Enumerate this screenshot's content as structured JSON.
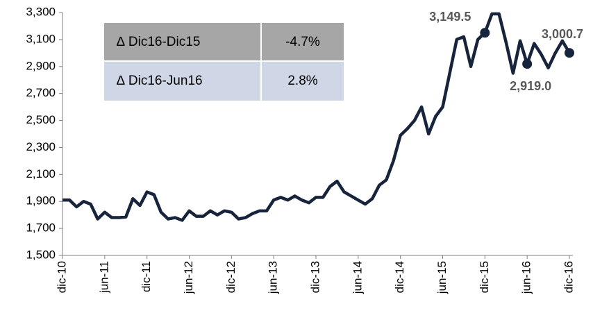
{
  "chart_data": {
    "type": "line",
    "categories": [
      "dic-10",
      null,
      null,
      null,
      null,
      null,
      "jun-11",
      null,
      null,
      null,
      null,
      null,
      "dic-11",
      null,
      null,
      null,
      null,
      null,
      "jun-12",
      null,
      null,
      null,
      null,
      null,
      "dic-12",
      null,
      null,
      null,
      null,
      null,
      "jun-13",
      null,
      null,
      null,
      null,
      null,
      "dic-13",
      null,
      null,
      null,
      null,
      null,
      "jun-14",
      null,
      null,
      null,
      null,
      null,
      "dic-14",
      null,
      null,
      null,
      null,
      null,
      "jun-15",
      null,
      null,
      null,
      null,
      null,
      "dic-15",
      null,
      null,
      null,
      null,
      null,
      "jun-16",
      null,
      null,
      null,
      null,
      null,
      "dic-16"
    ],
    "values": [
      1910,
      1910,
      1860,
      1900,
      1880,
      1770,
      1820,
      1780,
      1780,
      1785,
      1920,
      1870,
      1970,
      1950,
      1820,
      1770,
      1780,
      1760,
      1830,
      1790,
      1790,
      1830,
      1800,
      1830,
      1820,
      1770,
      1780,
      1810,
      1830,
      1830,
      1910,
      1930,
      1910,
      1940,
      1910,
      1890,
      1930,
      1930,
      2010,
      2050,
      1970,
      1940,
      1910,
      1880,
      1920,
      2020,
      2060,
      2200,
      2390,
      2440,
      2500,
      2600,
      2400,
      2530,
      2600,
      2850,
      3100,
      3120,
      2900,
      3100,
      3149.5,
      3290,
      3290,
      3080,
      2850,
      3090,
      2919.0,
      3070,
      2990,
      2890,
      3000,
      3090,
      3000.7
    ],
    "value_labels": [
      null,
      null,
      null,
      null,
      null,
      null,
      null,
      null,
      null,
      null,
      null,
      null,
      null,
      null,
      null,
      null,
      null,
      null,
      null,
      null,
      null,
      null,
      null,
      null,
      null,
      null,
      null,
      null,
      null,
      null,
      null,
      null,
      null,
      null,
      null,
      null,
      null,
      null,
      null,
      null,
      null,
      null,
      null,
      null,
      null,
      null,
      null,
      null,
      null,
      null,
      null,
      null,
      null,
      null,
      null,
      null,
      null,
      null,
      null,
      null,
      "3,149.5",
      null,
      null,
      null,
      null,
      null,
      "2,919.0",
      null,
      null,
      null,
      null,
      null,
      "3,000.7"
    ],
    "color": "#17243d",
    "ylim": [
      1500,
      3300
    ],
    "yticks": [
      {
        "value": 1500,
        "label": "1,500"
      },
      {
        "value": 1700,
        "label": "1,700"
      },
      {
        "value": 1900,
        "label": "1,900"
      },
      {
        "value": 2100,
        "label": "2,100"
      },
      {
        "value": 2300,
        "label": "2,300"
      },
      {
        "value": 2500,
        "label": "2,500"
      },
      {
        "value": 2700,
        "label": "2,700"
      },
      {
        "value": 2900,
        "label": "2,900"
      },
      {
        "value": 3100,
        "label": "3,100"
      },
      {
        "value": 3300,
        "label": "3,300"
      }
    ],
    "inset_table": [
      [
        "∆ Dic16-Dic15",
        "-4.7%"
      ],
      [
        "∆ Dic16-Jun16",
        "2.8%"
      ]
    ]
  }
}
